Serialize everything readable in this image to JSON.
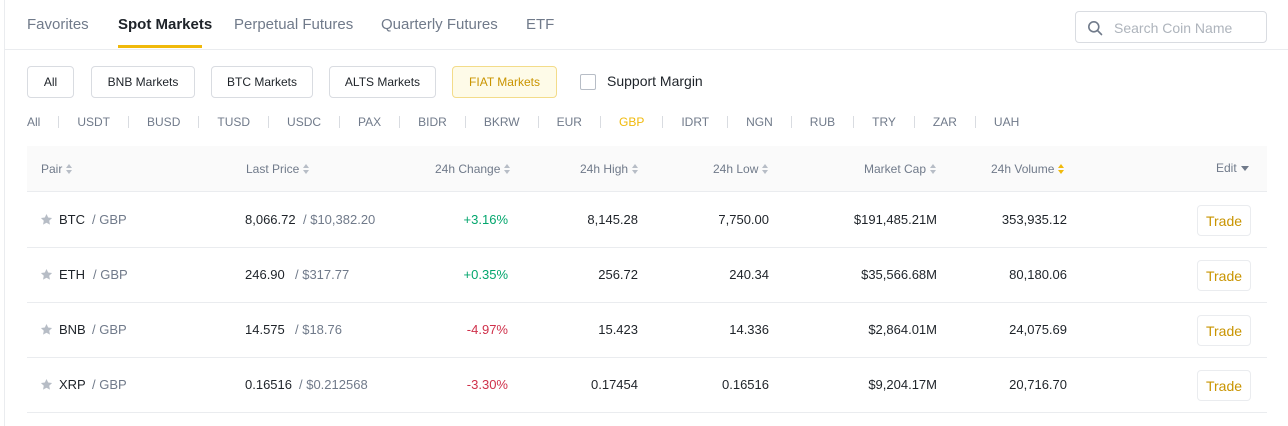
{
  "tabs": [
    "Favorites",
    "Spot Markets",
    "Perpetual Futures",
    "Quarterly Futures",
    "ETF"
  ],
  "active_tab": "Spot Markets",
  "search": {
    "placeholder": "Search Coin Name",
    "value": ""
  },
  "market_groups": [
    "All",
    "BNB Markets",
    "BTC Markets",
    "ALTS Markets",
    "FIAT Markets"
  ],
  "active_group": "FIAT Markets",
  "support_margin": {
    "label": "Support Margin",
    "checked": false
  },
  "currencies": [
    "All",
    "USDT",
    "BUSD",
    "TUSD",
    "USDC",
    "PAX",
    "BIDR",
    "BKRW",
    "EUR",
    "GBP",
    "IDRT",
    "NGN",
    "RUB",
    "TRY",
    "ZAR",
    "UAH"
  ],
  "active_currency": "GBP",
  "columns": {
    "pair": "Pair",
    "last_price": "Last Price",
    "change": "24h Change",
    "high": "24h High",
    "low": "24h Low",
    "market_cap": "Market Cap",
    "volume": "24h Volume",
    "edit": "Edit"
  },
  "sorted_column": "24h Volume",
  "rows": [
    {
      "base": "BTC",
      "quote": "/ GBP",
      "price": "8,066.72",
      "usd": "/ $10,382.20",
      "change": "+3.16%",
      "direction": "up",
      "high": "8,145.28",
      "low": "7,750.00",
      "market_cap": "$191,485.21M",
      "volume": "353,935.12",
      "action": "Trade"
    },
    {
      "base": "ETH",
      "quote": "/ GBP",
      "price": "246.90",
      "usd": "/ $317.77",
      "change": "+0.35%",
      "direction": "up",
      "high": "256.72",
      "low": "240.34",
      "market_cap": "$35,566.68M",
      "volume": "80,180.06",
      "action": "Trade"
    },
    {
      "base": "BNB",
      "quote": "/ GBP",
      "price": "14.575",
      "usd": "/ $18.76",
      "change": "-4.97%",
      "direction": "down",
      "high": "15.423",
      "low": "14.336",
      "market_cap": "$2,864.01M",
      "volume": "24,075.69",
      "action": "Trade"
    },
    {
      "base": "XRP",
      "quote": "/ GBP",
      "price": "0.16516",
      "usd": "/ $0.212568",
      "change": "-3.30%",
      "direction": "down",
      "high": "0.17454",
      "low": "0.16516",
      "market_cap": "$9,204.17M",
      "volume": "20,716.70",
      "action": "Trade"
    }
  ],
  "colors": {
    "accent": "#f0b90b",
    "up": "#03a66d",
    "down": "#cf304a",
    "text": "#1e2329",
    "muted": "#707a8a"
  },
  "icons": {
    "search": "search-icon",
    "favorite": "star-icon",
    "edit": "caret-down-icon",
    "sort": "sort-icon"
  }
}
